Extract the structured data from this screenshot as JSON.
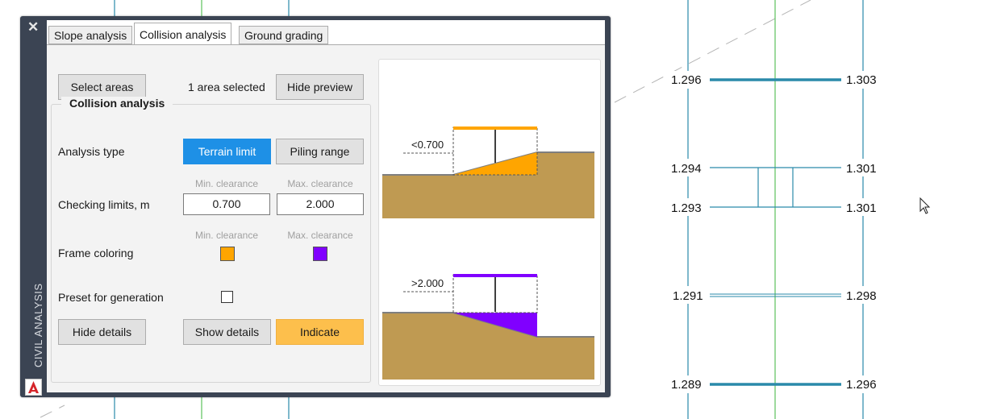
{
  "palette": {
    "side_label": "CIVIL ANALYSIS",
    "close_glyph": "✕",
    "logo_letter": "A",
    "logo_color": "#d5252a"
  },
  "tabs": [
    {
      "label": "Slope analysis",
      "active": false
    },
    {
      "label": "Collision analysis",
      "active": true
    },
    {
      "label": "Ground grading",
      "active": false
    }
  ],
  "toolbar": {
    "select_areas": "Select areas",
    "selection_status": "1 area selected",
    "hide_preview": "Hide preview"
  },
  "group": {
    "title": "Collision analysis",
    "analysis_type_label": "Analysis type",
    "terrain_limit": "Terrain limit",
    "piling_range": "Piling range",
    "checking_limits_label": "Checking limits, m",
    "min_clearance_hint": "Min. clearance",
    "max_clearance_hint": "Max. clearance",
    "min_value": "0.700",
    "max_value": "2.000",
    "frame_coloring_label": "Frame coloring",
    "min_color": "#ffa500",
    "max_color": "#8000ff",
    "preset_label": "Preset for generation",
    "preset_checked": false,
    "hide_details": "Hide details",
    "show_details": "Show details",
    "indicate": "Indicate"
  },
  "preview": {
    "top_limit": "<0.700",
    "bottom_limit": ">2.000",
    "terrain_color": "#bf9a52"
  },
  "drawing": {
    "rows": [
      {
        "left": "1.296",
        "right": "1.303"
      },
      {
        "left": "1.294",
        "right": "1.301"
      },
      {
        "left": "1.293",
        "right": "1.301"
      },
      {
        "left": "1.291",
        "right": "1.298"
      },
      {
        "left": "1.289",
        "right": "1.296"
      }
    ],
    "line_color": "#2a8aaa",
    "axis_color": "#5cc05c"
  }
}
